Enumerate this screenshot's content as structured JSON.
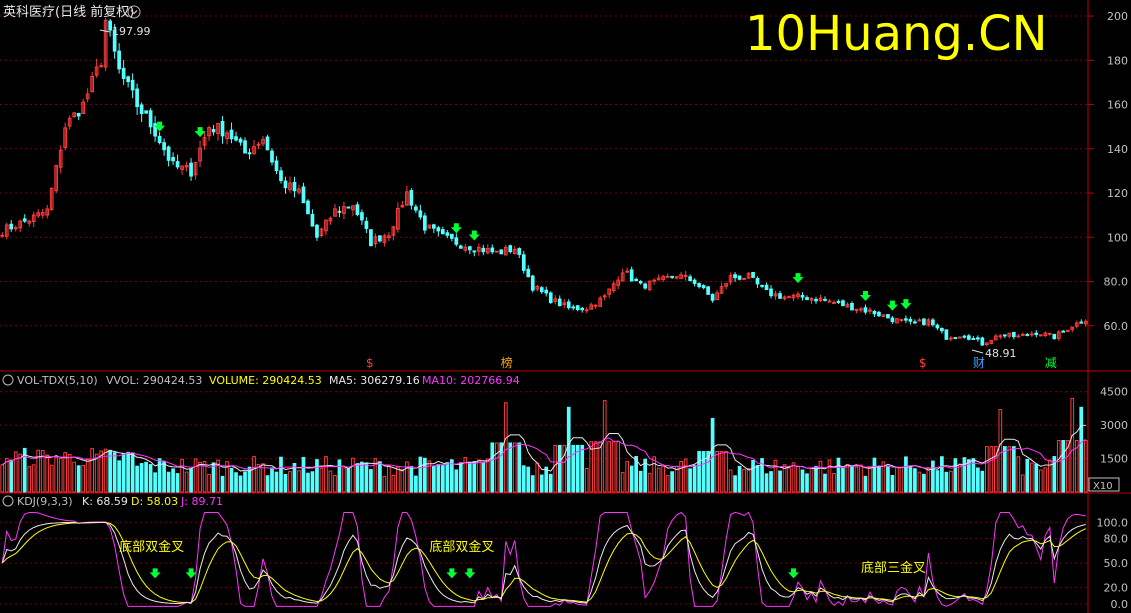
{
  "header": {
    "title": "英科医疗(日线 前复权)",
    "watermark": "10Huang.CN"
  },
  "colors": {
    "up": "#ff3b3b",
    "down": "#54ffff",
    "grid": "#7a0000",
    "axis": "#c00000",
    "text": "#c0c0c0",
    "yellow": "#ffff00",
    "magenta": "#ff33ff",
    "white": "#ffffff",
    "signal": "#00ff33"
  },
  "price_panel": {
    "high_label": "197.99",
    "low_label": "48.91",
    "y_ticks": [
      "200",
      "180",
      "160",
      "140",
      "120",
      "100",
      "80.0",
      "60.0"
    ],
    "markers": [
      {
        "text": "$",
        "color": "#ff3b3b"
      },
      {
        "text": "榜",
        "color": "#ffaa00"
      },
      {
        "text": "$",
        "color": "#ff3b3b"
      },
      {
        "text": "财",
        "color": "#3aa0ff"
      },
      {
        "text": "减",
        "color": "#00ff33"
      }
    ]
  },
  "volume_panel": {
    "name": "VOL-TDX(5,10)",
    "vvol": "VVOL: 290424.53",
    "volume": "VOLUME: 290424.53",
    "ma5": "MA5: 306279.16",
    "ma10": "MA10: 202766.94",
    "y_ticks": [
      "4500",
      "3000",
      "1500"
    ],
    "unit": "X10"
  },
  "kdj_panel": {
    "name": "KDJ(9,3,3)",
    "k": "K: 68.59",
    "d": "D: 58.03",
    "j": "J: 89.71",
    "y_ticks": [
      "100.0",
      "80.0",
      "50.0",
      "20.0",
      "0.0"
    ],
    "annotations": [
      "底部双金叉",
      "底部双金叉",
      "底部三金叉"
    ]
  },
  "chart_data": {
    "type": "candlestick",
    "title": "英科医疗(日线 前复权)",
    "ylim": [
      40,
      205
    ],
    "price_ticks": [
      200,
      180,
      160,
      140,
      120,
      100,
      80,
      60
    ],
    "anchors": [
      [
        0,
        103
      ],
      [
        6,
        108
      ],
      [
        10,
        112
      ],
      [
        14,
        150
      ],
      [
        18,
        160
      ],
      [
        22,
        180
      ],
      [
        23,
        198
      ],
      [
        26,
        175
      ],
      [
        30,
        160
      ],
      [
        34,
        148
      ],
      [
        38,
        132
      ],
      [
        42,
        130
      ],
      [
        46,
        150
      ],
      [
        50,
        148
      ],
      [
        54,
        138
      ],
      [
        58,
        145
      ],
      [
        62,
        125
      ],
      [
        66,
        120
      ],
      [
        70,
        100
      ],
      [
        74,
        112
      ],
      [
        78,
        115
      ],
      [
        82,
        98
      ],
      [
        86,
        102
      ],
      [
        90,
        120
      ],
      [
        94,
        105
      ],
      [
        98,
        100
      ],
      [
        102,
        97
      ],
      [
        106,
        95
      ],
      [
        110,
        93
      ],
      [
        114,
        95
      ],
      [
        118,
        78
      ],
      [
        122,
        72
      ],
      [
        126,
        68
      ],
      [
        130,
        68
      ],
      [
        134,
        73
      ],
      [
        138,
        85
      ],
      [
        142,
        78
      ],
      [
        146,
        80
      ],
      [
        150,
        83
      ],
      [
        154,
        80
      ],
      [
        158,
        72
      ],
      [
        162,
        82
      ],
      [
        166,
        82
      ],
      [
        170,
        75
      ],
      [
        174,
        73
      ],
      [
        178,
        73
      ],
      [
        182,
        72
      ],
      [
        186,
        70
      ],
      [
        190,
        68
      ],
      [
        194,
        66
      ],
      [
        198,
        63
      ],
      [
        202,
        61
      ],
      [
        206,
        62
      ],
      [
        210,
        55
      ],
      [
        214,
        56
      ],
      [
        218,
        52
      ],
      [
        222,
        56
      ],
      [
        226,
        55
      ],
      [
        230,
        57
      ],
      [
        234,
        55
      ],
      [
        238,
        60
      ],
      [
        241,
        63
      ]
    ],
    "down_arrow_bars": [
      35,
      44,
      101,
      105,
      177,
      192,
      198,
      201
    ],
    "high_bar": 23,
    "low_bar": 222,
    "marker_bars": [
      82,
      112,
      205,
      217,
      233
    ],
    "volume_ticks": [
      4500,
      3000,
      1500
    ],
    "volume_ylim": [
      0,
      4800
    ],
    "volume_spikes": [
      [
        112,
        4000
      ],
      [
        126,
        3800
      ],
      [
        134,
        4100
      ],
      [
        158,
        3300
      ],
      [
        222,
        3700
      ],
      [
        238,
        4200
      ],
      [
        240,
        3800
      ]
    ],
    "kdj_ticks": [
      100,
      80,
      50,
      20,
      0
    ],
    "kdj_ylim": [
      -5,
      115
    ],
    "kdj_annotation_bars": [
      26,
      95,
      191
    ],
    "kdj_arrow_bars": [
      34,
      42,
      100,
      104,
      176
    ],
    "series": [
      {
        "name": "VOLUME"
      },
      {
        "name": "MA5"
      },
      {
        "name": "MA10"
      },
      {
        "name": "K"
      },
      {
        "name": "D"
      },
      {
        "name": "J"
      }
    ],
    "n_bars": 242
  }
}
